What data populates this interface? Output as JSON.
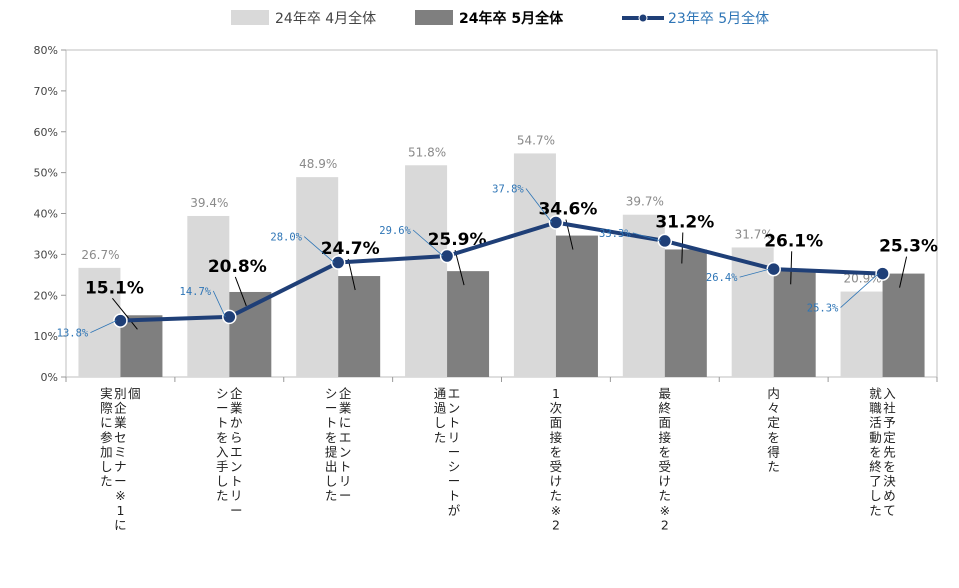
{
  "chart_data": {
    "type": "bar",
    "categories": [
      "個別企業セミナー※1に実際に参加した",
      "企業からエントリーシートを入手した",
      "企業にエントリーシートを提出した",
      "エントリーシートが通過した",
      "1次面接を受けた※2",
      "最終面接を受けた※2",
      "内々定を得た",
      "入社予定先を決めて就職活動を終了した"
    ],
    "category_lines": [
      [
        "個",
        "別企業セミナー※1に",
        "実際に参加した"
      ],
      [
        "企業からエントリー",
        "シートを入手した"
      ],
      [
        "企業にエントリー",
        "シートを提出した"
      ],
      [
        "エントリーシートが",
        "通過した"
      ],
      [
        "1次面接を受けた※2"
      ],
      [
        "最終面接を受けた※2"
      ],
      [
        "内々定を得た"
      ],
      [
        "入社予定先を決めて",
        "就職活動を終了した"
      ]
    ],
    "series": [
      {
        "name": "24年卒 4月全体",
        "type": "bar",
        "color": "#d9d9d9",
        "values": [
          26.7,
          39.4,
          48.9,
          51.8,
          54.7,
          39.7,
          31.7,
          20.9
        ],
        "labels": [
          "26.7%",
          "39.4%",
          "48.9%",
          "51.8%",
          "54.7%",
          "39.7%",
          "31.7%",
          "20.9%"
        ]
      },
      {
        "name": "24年卒 5月全体",
        "type": "bar",
        "color": "#7f7f7f",
        "values": [
          15.1,
          20.8,
          24.7,
          25.9,
          34.6,
          31.2,
          26.1,
          25.3
        ],
        "labels": [
          "15.1%",
          "20.8%",
          "24.7%",
          "25.9%",
          "34.6%",
          "31.2%",
          "26.1%",
          "25.3%"
        ]
      },
      {
        "name": "23年卒 5月全体",
        "type": "line",
        "color": "#1f3f77",
        "label_color": "#2e75b6",
        "values": [
          13.8,
          14.7,
          28.0,
          29.6,
          37.8,
          33.3,
          26.4,
          25.3
        ],
        "labels": [
          "13.8%",
          "14.7%",
          "28.0%",
          "29.6%",
          "37.8%",
          "33.3%",
          "26.4%",
          "25.3%"
        ]
      }
    ],
    "y_ticks": [
      "0%",
      "10%",
      "20%",
      "30%",
      "40%",
      "50%",
      "60%",
      "70%",
      "80%"
    ],
    "ylim": [
      0,
      80
    ],
    "grid": false,
    "legend_position": "top"
  }
}
